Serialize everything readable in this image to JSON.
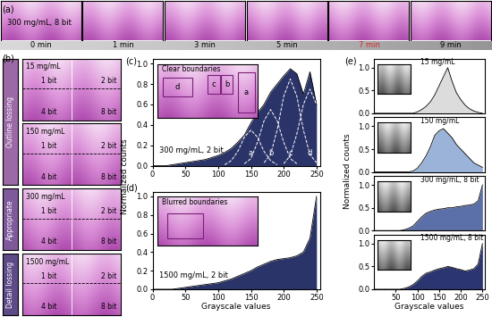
{
  "panel_labels": [
    "(a)",
    "(b)",
    "(c)",
    "(d)",
    "(e)"
  ],
  "panel_a": {
    "image_label": "300 mg/mL, 8 bit",
    "times": [
      "0 min",
      "1 min",
      "3 min",
      "5 min",
      "7 min",
      "9 min"
    ],
    "highlight": "7 min",
    "highlight_color": "#d62728"
  },
  "panel_b": {
    "groups": [
      {
        "label": "15 mg/mL",
        "bits": [
          "1 bit",
          "2 bit",
          "4 bit",
          "8 bit"
        ]
      },
      {
        "label": "150 mg/mL",
        "bits": [
          "1 bit",
          "2 bit",
          "4 bit",
          "8 bit"
        ]
      },
      {
        "label": "300 mg/mL",
        "bits": [
          "1 bit",
          "2 bit",
          "4 bit",
          "8 bit"
        ]
      },
      {
        "label": "1500 mg/mL",
        "bits": [
          "1 bit",
          "2 bit",
          "4 bit",
          "8 bit"
        ]
      }
    ],
    "side_labels": [
      "Outline lossing",
      "Appropriate",
      "Detail lossing"
    ]
  },
  "chart_data": [
    {
      "type": "area",
      "title": "300 mg/mL, 2 bit",
      "inset_label": "Clear boundaries",
      "inset_regions": [
        "a",
        "b",
        "c",
        "d"
      ],
      "ylabel": "Normalized counts",
      "color": "#2b3468",
      "x": [
        0,
        10,
        20,
        30,
        40,
        50,
        60,
        70,
        80,
        90,
        100,
        110,
        120,
        130,
        140,
        150,
        160,
        170,
        180,
        190,
        200,
        210,
        220,
        230,
        240,
        250
      ],
      "values": [
        0,
        0,
        0,
        0.01,
        0.02,
        0.03,
        0.04,
        0.05,
        0.06,
        0.08,
        0.1,
        0.13,
        0.17,
        0.23,
        0.3,
        0.42,
        0.52,
        0.6,
        0.72,
        0.8,
        0.88,
        0.95,
        0.9,
        0.7,
        0.92,
        0.6
      ],
      "components": [
        {
          "label": "a",
          "values": [
            null,
            null,
            null,
            null,
            null,
            null,
            null,
            null,
            null,
            null,
            null,
            0.01,
            0.05,
            0.14,
            0.28,
            0.35,
            0.28,
            0.14,
            0.05,
            0.01,
            null,
            null,
            null,
            null,
            null,
            null
          ]
        },
        {
          "label": "b",
          "values": [
            null,
            null,
            null,
            null,
            null,
            null,
            null,
            null,
            null,
            null,
            null,
            null,
            null,
            null,
            0.02,
            0.07,
            0.23,
            0.44,
            0.55,
            0.44,
            0.23,
            0.07,
            0.02,
            null,
            null,
            null
          ]
        },
        {
          "label": "c",
          "values": [
            null,
            null,
            null,
            null,
            null,
            null,
            null,
            null,
            null,
            null,
            null,
            null,
            null,
            null,
            null,
            null,
            null,
            0.03,
            0.11,
            0.35,
            0.68,
            0.85,
            0.68,
            0.35,
            0.11,
            0.03
          ]
        },
        {
          "label": "d",
          "values": [
            null,
            null,
            null,
            null,
            null,
            null,
            null,
            null,
            null,
            null,
            null,
            null,
            null,
            null,
            null,
            null,
            null,
            null,
            null,
            null,
            0.02,
            0.1,
            0.31,
            0.6,
            0.75,
            0.6
          ]
        }
      ],
      "xlim": [
        0,
        255
      ],
      "xticks": [
        0,
        50,
        100,
        150,
        200,
        250
      ],
      "ylim": [
        0,
        1.05
      ],
      "yticks": [
        {
          "value": 0,
          "label": "0.0"
        },
        {
          "value": 0.2,
          "label": "0.2"
        },
        {
          "value": 0.4,
          "label": "0.4"
        },
        {
          "value": 0.6,
          "label": "0.6"
        },
        {
          "value": 0.8,
          "label": "0.8"
        },
        {
          "value": 1.0,
          "label": "1.0"
        }
      ]
    },
    {
      "type": "area",
      "title": "1500 mg/mL, 2 bit",
      "inset_label": "Blurred boundaries",
      "xlabel": "Grayscale values",
      "color": "#2b3468",
      "x": [
        0,
        10,
        20,
        30,
        40,
        50,
        60,
        70,
        80,
        90,
        100,
        110,
        120,
        130,
        140,
        150,
        160,
        170,
        180,
        190,
        200,
        210,
        220,
        230,
        240,
        250
      ],
      "values": [
        0,
        0,
        0,
        0,
        0.01,
        0.02,
        0.03,
        0.04,
        0.05,
        0.06,
        0.07,
        0.09,
        0.11,
        0.14,
        0.17,
        0.2,
        0.24,
        0.27,
        0.3,
        0.32,
        0.33,
        0.34,
        0.36,
        0.4,
        0.55,
        1.0
      ],
      "xlim": [
        0,
        255
      ],
      "xticks": [
        0,
        50,
        100,
        150,
        200,
        250
      ],
      "ylim": [
        0,
        1.05
      ],
      "yticks": [
        {
          "value": 0,
          "label": "0.0"
        },
        {
          "value": 0.2,
          "label": "0.2"
        },
        {
          "value": 0.4,
          "label": "0.4"
        },
        {
          "value": 0.6,
          "label": "0.6"
        },
        {
          "value": 0.8,
          "label": "0.8"
        },
        {
          "value": 1.0,
          "label": "1.0"
        }
      ]
    },
    {
      "type": "area",
      "title": "15 mg/mL",
      "ylabel": "Normalized counts",
      "color": "#dcdcdc",
      "x": [
        0,
        10,
        20,
        30,
        40,
        50,
        60,
        70,
        80,
        90,
        100,
        110,
        120,
        130,
        140,
        150,
        160,
        170,
        180,
        190,
        200,
        210,
        220,
        230,
        240,
        250
      ],
      "values": [
        0,
        0,
        0,
        0,
        0,
        0,
        0,
        0,
        0,
        0,
        0.03,
        0.08,
        0.15,
        0.25,
        0.4,
        0.6,
        0.8,
        1.0,
        0.7,
        0.45,
        0.3,
        0.18,
        0.1,
        0.05,
        0.02,
        0
      ],
      "xlim": [
        0,
        255
      ],
      "ylim": [
        0,
        1.2
      ],
      "yticks": [
        {
          "value": 0,
          "label": "0.0"
        },
        {
          "value": 0.5,
          "label": "0.5"
        },
        {
          "value": 1.0,
          "label": "1.0"
        }
      ]
    },
    {
      "type": "area",
      "title": "150 mg/mL",
      "color": "#9bb3d9",
      "x": [
        0,
        10,
        20,
        30,
        40,
        50,
        60,
        70,
        80,
        90,
        100,
        110,
        120,
        130,
        140,
        150,
        160,
        170,
        180,
        190,
        200,
        210,
        220,
        230,
        240,
        250
      ],
      "values": [
        0,
        0,
        0,
        0,
        0,
        0,
        0,
        0,
        0,
        0.02,
        0.08,
        0.2,
        0.35,
        0.55,
        0.8,
        0.9,
        0.95,
        0.85,
        0.75,
        0.6,
        0.5,
        0.4,
        0.3,
        0.2,
        0.15,
        0.1
      ],
      "xlim": [
        0,
        255
      ],
      "ylim": [
        0,
        1.2
      ],
      "yticks": [
        {
          "value": 0,
          "label": "0.0"
        },
        {
          "value": 0.5,
          "label": "0.5"
        },
        {
          "value": 1.0,
          "label": "1.0"
        }
      ]
    },
    {
      "type": "area",
      "title": "300 mg/mL, 8 bit",
      "color": "#5b6fa8",
      "x": [
        0,
        10,
        20,
        30,
        40,
        50,
        60,
        70,
        80,
        90,
        100,
        110,
        120,
        130,
        140,
        150,
        160,
        170,
        180,
        190,
        200,
        210,
        220,
        230,
        240,
        250
      ],
      "values": [
        0,
        0,
        0,
        0,
        0,
        0,
        0,
        0.02,
        0.05,
        0.1,
        0.2,
        0.3,
        0.38,
        0.42,
        0.45,
        0.47,
        0.48,
        0.5,
        0.5,
        0.52,
        0.53,
        0.55,
        0.56,
        0.58,
        0.65,
        1.0
      ],
      "xlim": [
        0,
        255
      ],
      "ylim": [
        0,
        1.2
      ],
      "yticks": [
        {
          "value": 0,
          "label": "0.0"
        },
        {
          "value": 0.5,
          "label": "0.5"
        },
        {
          "value": 1.0,
          "label": "1.0"
        }
      ]
    },
    {
      "type": "area",
      "title": "1500 mg/mL, 8 bit",
      "xlabel": "Grayscale values",
      "color": "#2b3570",
      "x": [
        0,
        10,
        20,
        30,
        40,
        50,
        60,
        70,
        80,
        90,
        100,
        110,
        120,
        130,
        140,
        150,
        160,
        170,
        180,
        190,
        200,
        210,
        220,
        230,
        240,
        250
      ],
      "values": [
        0,
        0,
        0,
        0,
        0,
        0,
        0,
        0.02,
        0.05,
        0.1,
        0.18,
        0.28,
        0.35,
        0.38,
        0.42,
        0.45,
        0.47,
        0.5,
        0.48,
        0.45,
        0.43,
        0.4,
        0.42,
        0.45,
        0.55,
        1.0
      ],
      "xlim": [
        0,
        255
      ],
      "xticks": [
        50,
        100,
        150,
        200,
        250
      ],
      "ylim": [
        0,
        1.2
      ],
      "yticks": [
        {
          "value": 0,
          "label": "0.0"
        },
        {
          "value": 0.5,
          "label": "0.5"
        },
        {
          "value": 1.0,
          "label": "1.0"
        }
      ]
    }
  ]
}
